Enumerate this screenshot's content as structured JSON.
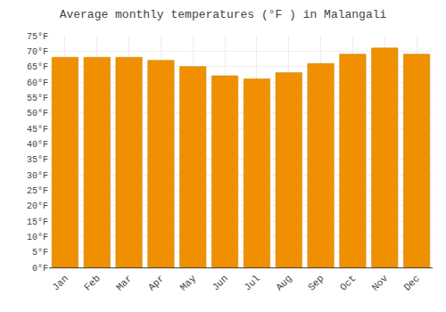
{
  "chart_data": {
    "type": "bar",
    "title": "Average monthly temperatures (°F ) in Malangali",
    "categories": [
      "Jan",
      "Feb",
      "Mar",
      "Apr",
      "May",
      "Jun",
      "Jul",
      "Aug",
      "Sep",
      "Oct",
      "Nov",
      "Dec"
    ],
    "values": [
      68,
      68,
      68,
      67,
      65,
      62,
      61,
      63,
      66,
      69,
      71,
      69
    ],
    "color": "#F09000",
    "ylim": [
      0,
      75
    ],
    "yticks": [
      {
        "value": 0,
        "label": "0°F"
      },
      {
        "value": 5,
        "label": "5°F"
      },
      {
        "value": 10,
        "label": "10°F"
      },
      {
        "value": 15,
        "label": "15°F"
      },
      {
        "value": 20,
        "label": "20°F"
      },
      {
        "value": 25,
        "label": "25°F"
      },
      {
        "value": 30,
        "label": "30°F"
      },
      {
        "value": 35,
        "label": "35°F"
      },
      {
        "value": 40,
        "label": "40°F"
      },
      {
        "value": 45,
        "label": "45°F"
      },
      {
        "value": 50,
        "label": "50°F"
      },
      {
        "value": 55,
        "label": "55°F"
      },
      {
        "value": 60,
        "label": "60°F"
      },
      {
        "value": 65,
        "label": "65°F"
      },
      {
        "value": 70,
        "label": "70°F"
      },
      {
        "value": 75,
        "label": "75°F"
      }
    ],
    "grid": true
  }
}
